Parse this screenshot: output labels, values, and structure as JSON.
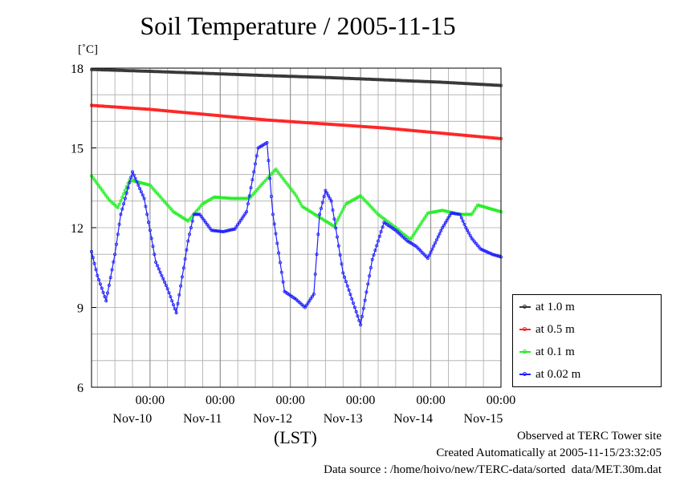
{
  "chart_data": {
    "type": "line",
    "title": "Soil Temperature / 2005-11-15",
    "ylabel": "[˚C]",
    "xlabel": "(LST)",
    "ylim": [
      6,
      18
    ],
    "yticks": [
      "18",
      "15",
      "12",
      "9",
      "6"
    ],
    "yticks_values": [
      18,
      15,
      12,
      9,
      6
    ],
    "xticks": [
      {
        "time": "00:00",
        "date": "Nov-10"
      },
      {
        "time": "00:00",
        "date": "Nov-11"
      },
      {
        "time": "00:00",
        "date": "Nov-12"
      },
      {
        "time": "00:00",
        "date": "Nov-13"
      },
      {
        "time": "00:00",
        "date": "Nov-14"
      },
      {
        "time": "00:00",
        "date": "Nov-15"
      }
    ],
    "x_range_hours": [
      -20,
      120
    ],
    "grid": true,
    "legend_position": "right-bottom",
    "series": [
      {
        "name": "at 1.0 m",
        "color": "#333333",
        "x": [
          -20,
          0,
          20,
          40,
          60,
          80,
          100,
          120
        ],
        "y": [
          17.95,
          17.88,
          17.8,
          17.72,
          17.65,
          17.56,
          17.47,
          17.35
        ]
      },
      {
        "name": "at 0.5 m",
        "color": "#ff2020",
        "x": [
          -20,
          0,
          20,
          40,
          60,
          80,
          100,
          120
        ],
        "y": [
          16.6,
          16.45,
          16.25,
          16.05,
          15.9,
          15.75,
          15.55,
          15.35
        ]
      },
      {
        "name": "at 0.1 m",
        "color": "#22ee22",
        "x": [
          -20,
          -14,
          -11,
          -7,
          0,
          8,
          13,
          18,
          22,
          28,
          34,
          38,
          43,
          50,
          52,
          60,
          63,
          67,
          72,
          78,
          84,
          89,
          95,
          100,
          106,
          110,
          112,
          120
        ],
        "y": [
          13.95,
          13.05,
          12.75,
          13.8,
          13.6,
          12.6,
          12.25,
          12.9,
          13.15,
          13.1,
          13.1,
          13.6,
          14.2,
          13.2,
          12.8,
          12.25,
          12.05,
          12.9,
          13.2,
          12.5,
          12.0,
          11.55,
          12.55,
          12.65,
          12.5,
          12.5,
          12.85,
          12.6
        ]
      },
      {
        "name": "at 0.02 m",
        "color": "#2020ff",
        "x": [
          -20,
          -18,
          -15,
          -12,
          -10,
          -6,
          -2,
          2,
          6,
          9,
          13,
          15,
          17,
          19,
          21,
          25,
          29,
          33,
          37,
          40,
          42,
          46,
          50,
          53,
          56,
          58,
          60,
          62,
          66,
          72,
          76,
          80,
          84,
          88,
          91,
          95,
          100,
          103,
          106,
          108,
          110,
          113,
          115,
          117,
          120
        ],
        "y": [
          11.1,
          10.2,
          9.25,
          11.0,
          12.5,
          14.1,
          13.1,
          10.7,
          9.7,
          8.8,
          11.5,
          12.5,
          12.5,
          12.2,
          11.9,
          11.85,
          11.95,
          12.6,
          15.0,
          15.2,
          12.5,
          9.6,
          9.3,
          9.0,
          9.5,
          12.5,
          13.4,
          13.0,
          10.3,
          8.35,
          10.8,
          12.2,
          11.9,
          11.5,
          11.3,
          10.85,
          12.0,
          12.55,
          12.5,
          12.0,
          11.6,
          11.2,
          11.1,
          11.0,
          10.9
        ]
      }
    ]
  },
  "footer": {
    "line1": "Observed at TERC Tower site",
    "line2": "Created Automatically at 2005-11-15/23:32:05",
    "line3": "Data source : /home/hoivo/new/TERC-data/sorted  data/MET.30m.dat"
  }
}
